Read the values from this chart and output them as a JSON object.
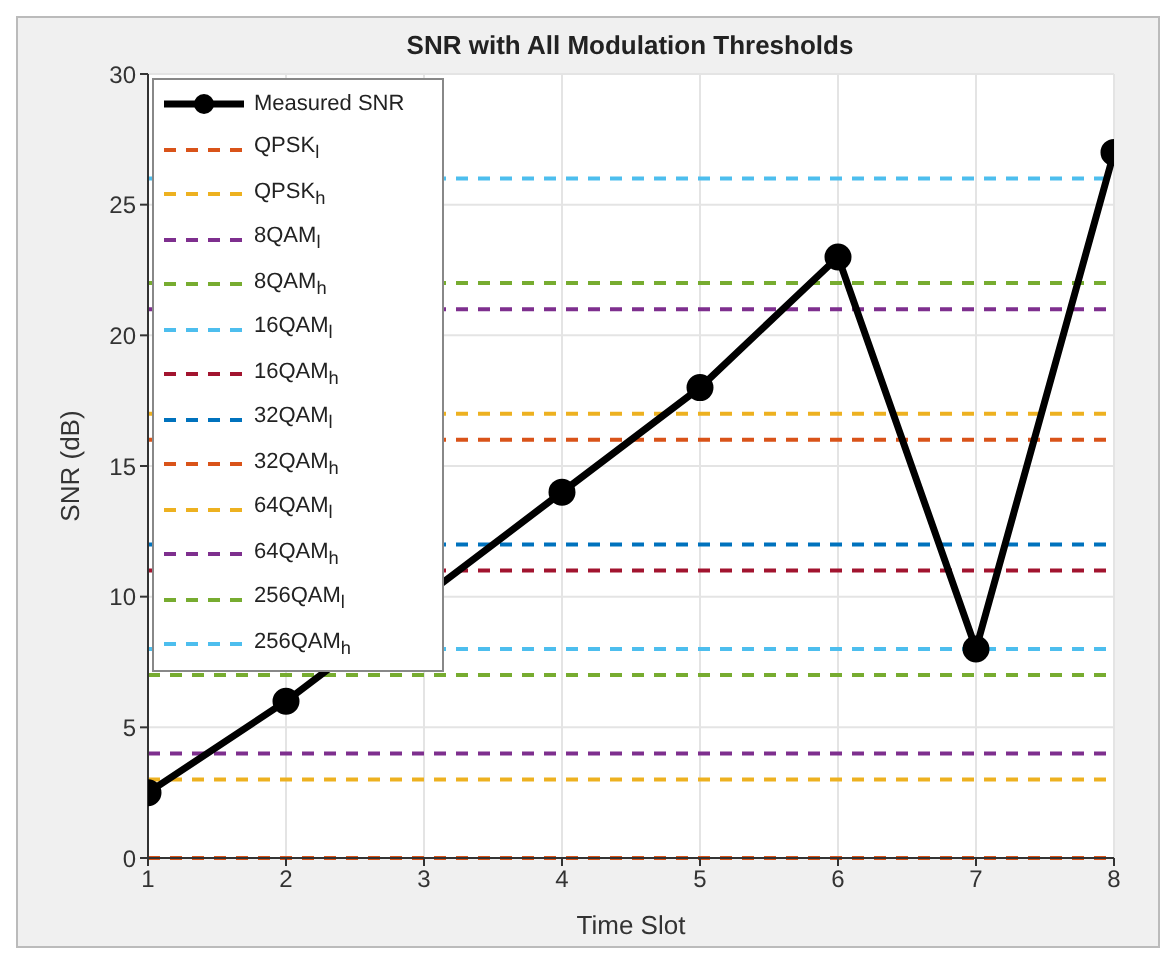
{
  "chart_data": {
    "type": "line",
    "title": "SNR with All Modulation Thresholds",
    "xlabel": "Time Slot",
    "ylabel": "SNR (dB)",
    "x": [
      1,
      2,
      3,
      4,
      5,
      6,
      7,
      8
    ],
    "xlim": [
      1,
      8
    ],
    "xticks": [
      1,
      2,
      3,
      4,
      5,
      6,
      7,
      8
    ],
    "ylim": [
      0,
      30
    ],
    "yticks": [
      0,
      5,
      10,
      15,
      20,
      25,
      30
    ],
    "grid": true,
    "legend": "top left",
    "series": [
      {
        "name": "Measured SNR",
        "color": "#000000",
        "values": [
          2.5,
          6,
          null,
          14,
          18,
          23,
          8,
          27
        ],
        "marker": "circle",
        "line_style": "solid"
      }
    ],
    "ref_lines": [
      {
        "axis": "y",
        "value": 0,
        "label": "QPSK$_{l}$",
        "color": "#d95319",
        "line_style": "dashed"
      },
      {
        "axis": "y",
        "value": 3,
        "label": "QPSK$_{h}$",
        "color": "#edb120",
        "line_style": "dashed"
      },
      {
        "axis": "y",
        "value": 4,
        "label": "8QAM$_{l}$",
        "color": "#7e2f8e",
        "line_style": "dashed"
      },
      {
        "axis": "y",
        "value": 7,
        "label": "8QAM$_{h}$",
        "color": "#77ac30",
        "line_style": "dashed"
      },
      {
        "axis": "y",
        "value": 8,
        "label": "16QAM$_{l}$",
        "color": "#4dbeee",
        "line_style": "dashed"
      },
      {
        "axis": "y",
        "value": 11,
        "label": "16QAM$_{h}$",
        "color": "#a2142f",
        "line_style": "dashed"
      },
      {
        "axis": "y",
        "value": 12,
        "label": "32QAM$_{l}$",
        "color": "#0072bd",
        "line_style": "dashed"
      },
      {
        "axis": "y",
        "value": 16,
        "label": "32QAM$_{h}$",
        "color": "#d95319",
        "line_style": "dashed"
      },
      {
        "axis": "y",
        "value": 17,
        "label": "64QAM$_{l}$",
        "color": "#edb120",
        "line_style": "dashed"
      },
      {
        "axis": "y",
        "value": 21,
        "label": "64QAM$_{h}$",
        "color": "#7e2f8e",
        "line_style": "dashed"
      },
      {
        "axis": "y",
        "value": 22,
        "label": "256QAM$_{l}$",
        "color": "#77ac30",
        "line_style": "dashed"
      },
      {
        "axis": "y",
        "value": 26,
        "label": "256QAM$_{h}$",
        "color": "#4dbeee",
        "line_style": "dashed"
      }
    ]
  }
}
